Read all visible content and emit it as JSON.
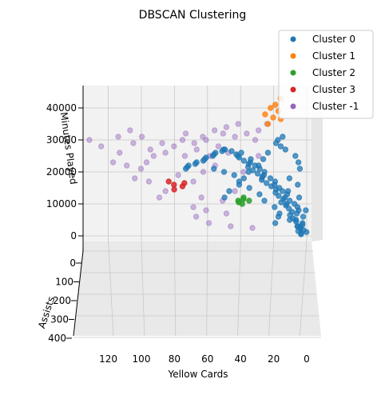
{
  "chart_data": {
    "type": "scatter",
    "title": "DBSCAN Clustering",
    "xlabel": "Yellow Cards",
    "ylabel": "Assists",
    "zlabel": "Minutes Played",
    "x_ticks": [
      120,
      100,
      80,
      60,
      40,
      20,
      0
    ],
    "y_ticks": [
      0,
      100,
      200,
      300,
      400
    ],
    "z_ticks": [
      0,
      10000,
      20000,
      30000,
      40000
    ],
    "xlim": [
      0,
      135
    ],
    "ylim": [
      0,
      400
    ],
    "zlim": [
      -3000,
      47000
    ],
    "grid": true,
    "legend_position": "top-right",
    "colors": {
      "Cluster 0": "#1f77b4",
      "Cluster 1": "#ff7f0e",
      "Cluster 2": "#2ca02c",
      "Cluster 3": "#d62728",
      "Cluster -1": "#9467bd"
    },
    "series": [
      {
        "name": "Cluster 0",
        "points": [
          [
            2,
            0,
            500
          ],
          [
            3,
            0,
            800
          ],
          [
            1,
            0,
            1200
          ],
          [
            4,
            0,
            1500
          ],
          [
            2,
            0,
            1800
          ],
          [
            5,
            0,
            2200
          ],
          [
            3,
            0,
            2600
          ],
          [
            6,
            0,
            3000
          ],
          [
            4,
            0,
            3500
          ],
          [
            2,
            0,
            4000
          ],
          [
            7,
            0,
            4500
          ],
          [
            5,
            0,
            5000
          ],
          [
            8,
            0,
            5500
          ],
          [
            3,
            0,
            6000
          ],
          [
            9,
            0,
            6500
          ],
          [
            6,
            0,
            7000
          ],
          [
            10,
            0,
            7500
          ],
          [
            4,
            0,
            8000
          ],
          [
            11,
            0,
            8500
          ],
          [
            7,
            0,
            9000
          ],
          [
            12,
            0,
            9500
          ],
          [
            8,
            0,
            10000
          ],
          [
            14,
            0,
            10500
          ],
          [
            10,
            0,
            11000
          ],
          [
            15,
            0,
            11500
          ],
          [
            12,
            0,
            12000
          ],
          [
            17,
            0,
            12500
          ],
          [
            13,
            0,
            13000
          ],
          [
            18,
            0,
            13500
          ],
          [
            15,
            0,
            14000
          ],
          [
            20,
            0,
            14500
          ],
          [
            16,
            0,
            15000
          ],
          [
            22,
            0,
            15500
          ],
          [
            18,
            0,
            16000
          ],
          [
            24,
            0,
            16500
          ],
          [
            20,
            0,
            17000
          ],
          [
            26,
            0,
            17500
          ],
          [
            22,
            0,
            18000
          ],
          [
            28,
            0,
            18500
          ],
          [
            25,
            0,
            19000
          ],
          [
            30,
            0,
            19500
          ],
          [
            27,
            0,
            20000
          ],
          [
            32,
            0,
            20500
          ],
          [
            29,
            0,
            21000
          ],
          [
            34,
            0,
            21500
          ],
          [
            31,
            0,
            22000
          ],
          [
            36,
            0,
            22500
          ],
          [
            33,
            0,
            23000
          ],
          [
            38,
            0,
            23500
          ],
          [
            35,
            0,
            24000
          ],
          [
            40,
            0,
            24500
          ],
          [
            42,
            0,
            25000
          ],
          [
            44,
            0,
            25500
          ],
          [
            39,
            0,
            26000
          ],
          [
            46,
            0,
            26500
          ],
          [
            48,
            0,
            27000
          ],
          [
            50,
            0,
            27000
          ],
          [
            52,
            0,
            26500
          ],
          [
            54,
            0,
            26000
          ],
          [
            56,
            0,
            25500
          ],
          [
            58,
            0,
            25000
          ],
          [
            60,
            0,
            24500
          ],
          [
            62,
            0,
            24000
          ],
          [
            64,
            0,
            23500
          ],
          [
            66,
            0,
            23000
          ],
          [
            68,
            0,
            22500
          ],
          [
            70,
            0,
            22000
          ],
          [
            72,
            0,
            21500
          ],
          [
            74,
            0,
            21000
          ],
          [
            55,
            0,
            21000
          ],
          [
            50,
            0,
            20000
          ],
          [
            45,
            0,
            19000
          ],
          [
            40,
            0,
            17000
          ],
          [
            35,
            0,
            15000
          ],
          [
            30,
            0,
            13000
          ],
          [
            25,
            0,
            11000
          ],
          [
            20,
            0,
            9000
          ],
          [
            15,
            0,
            7000
          ],
          [
            10,
            0,
            5000
          ],
          [
            6,
            0,
            3000
          ],
          [
            3,
            0,
            21000
          ],
          [
            5,
            0,
            23000
          ],
          [
            8,
            0,
            25000
          ],
          [
            12,
            0,
            27000
          ],
          [
            16,
            0,
            28000
          ],
          [
            20,
            0,
            29000
          ],
          [
            14,
            0,
            31000
          ],
          [
            18,
            0,
            30000
          ],
          [
            22,
            0,
            26000
          ],
          [
            26,
            0,
            24000
          ],
          [
            30,
            0,
            22000
          ],
          [
            34,
            0,
            20000
          ],
          [
            38,
            0,
            18000
          ],
          [
            42,
            0,
            16000
          ],
          [
            46,
            0,
            14000
          ],
          [
            50,
            0,
            12000
          ],
          [
            2,
            0,
            8000
          ],
          [
            4,
            0,
            12000
          ],
          [
            6,
            0,
            16000
          ],
          [
            9,
            0,
            18000
          ],
          [
            11,
            0,
            14000
          ],
          [
            13,
            0,
            10000
          ],
          [
            16,
            0,
            6000
          ],
          [
            19,
            0,
            4000
          ]
        ]
      },
      {
        "name": "Cluster 1",
        "points": [
          [
            22,
            0,
            35000
          ],
          [
            20,
            0,
            37000
          ],
          [
            18,
            0,
            39000
          ],
          [
            24,
            0,
            38000
          ],
          [
            19,
            0,
            41000
          ],
          [
            17,
            0,
            43000
          ],
          [
            21,
            0,
            40000
          ],
          [
            16,
            0,
            36500
          ]
        ]
      },
      {
        "name": "Cluster 2",
        "points": [
          [
            40,
            0,
            11000
          ],
          [
            38,
            0,
            11500
          ],
          [
            42,
            0,
            10500
          ],
          [
            37,
            0,
            12000
          ],
          [
            39,
            0,
            10000
          ],
          [
            36,
            0,
            11000
          ]
        ]
      },
      {
        "name": "Cluster 3",
        "points": [
          [
            82,
            0,
            17000
          ],
          [
            80,
            0,
            16000
          ],
          [
            76,
            0,
            15500
          ],
          [
            79,
            0,
            14500
          ],
          [
            74,
            0,
            16500
          ]
        ]
      },
      {
        "name": "Cluster -1",
        "points": [
          [
            130,
            0,
            30000
          ],
          [
            124,
            0,
            28000
          ],
          [
            118,
            0,
            23000
          ],
          [
            112,
            0,
            26000
          ],
          [
            114,
            0,
            31000
          ],
          [
            108,
            0,
            33000
          ],
          [
            104,
            0,
            29000
          ],
          [
            100,
            0,
            31000
          ],
          [
            96,
            0,
            27000
          ],
          [
            92,
            0,
            25000
          ],
          [
            88,
            0,
            29000
          ],
          [
            84,
            0,
            26000
          ],
          [
            80,
            0,
            28000
          ],
          [
            76,
            0,
            30000
          ],
          [
            72,
            0,
            32000
          ],
          [
            68,
            0,
            29000
          ],
          [
            64,
            0,
            31000
          ],
          [
            60,
            0,
            30000
          ],
          [
            56,
            0,
            33000
          ],
          [
            52,
            0,
            32000
          ],
          [
            48,
            0,
            34000
          ],
          [
            44,
            0,
            31000
          ],
          [
            40,
            0,
            35000
          ],
          [
            36,
            0,
            32000
          ],
          [
            32,
            0,
            30000
          ],
          [
            28,
            0,
            33000
          ],
          [
            24,
            0,
            35000
          ],
          [
            52,
            0,
            11000
          ],
          [
            60,
            0,
            8000
          ],
          [
            64,
            0,
            12000
          ],
          [
            70,
            0,
            9000
          ],
          [
            48,
            0,
            7000
          ],
          [
            86,
            0,
            14000
          ],
          [
            94,
            0,
            17000
          ],
          [
            100,
            0,
            21000
          ],
          [
            90,
            0,
            12000
          ],
          [
            58,
            0,
            4000
          ],
          [
            46,
            0,
            3000
          ],
          [
            34,
            0,
            2500
          ],
          [
            66,
            0,
            6000
          ],
          [
            78,
            0,
            19000
          ],
          [
            70,
            0,
            17000
          ],
          [
            62,
            0,
            20000
          ],
          [
            56,
            0,
            22000
          ],
          [
            42,
            0,
            14000
          ],
          [
            38,
            0,
            20000
          ],
          [
            30,
            0,
            25000
          ],
          [
            26,
            0,
            18000
          ],
          [
            104,
            0,
            18000
          ],
          [
            110,
            0,
            22000
          ],
          [
            96,
            0,
            23000
          ],
          [
            74,
            0,
            25000
          ],
          [
            68,
            0,
            27000
          ],
          [
            58,
            0,
            25000
          ],
          [
            54,
            0,
            28000
          ],
          [
            46,
            0,
            26000
          ]
        ]
      }
    ]
  }
}
